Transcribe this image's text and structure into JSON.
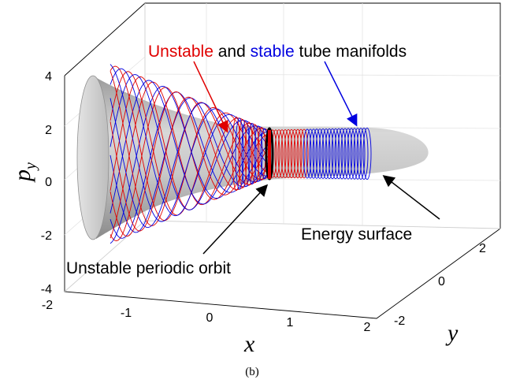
{
  "caption": "(b)",
  "annotations": {
    "title_part1": "Unstable",
    "title_part2": " and ",
    "title_part3": "stable",
    "title_part4": " tube manifolds",
    "energy_surface": "Energy surface",
    "periodic_orbit": "Unstable periodic orbit"
  },
  "axes": {
    "x_label": "x",
    "y_label": "y",
    "z_label": "p",
    "z_label_sub": "y",
    "x_ticks": [
      "-2",
      "-1",
      "0",
      "1",
      "2"
    ],
    "y_ticks": [
      "-2",
      "0",
      "2"
    ],
    "z_ticks": [
      "4",
      "2",
      "0",
      "-2",
      "-4"
    ]
  },
  "colors": {
    "unstable": "#e00000",
    "stable": "#0000e0",
    "surface": "#b8b8b8",
    "orbit": "#000000",
    "arrow": "#000000"
  }
}
